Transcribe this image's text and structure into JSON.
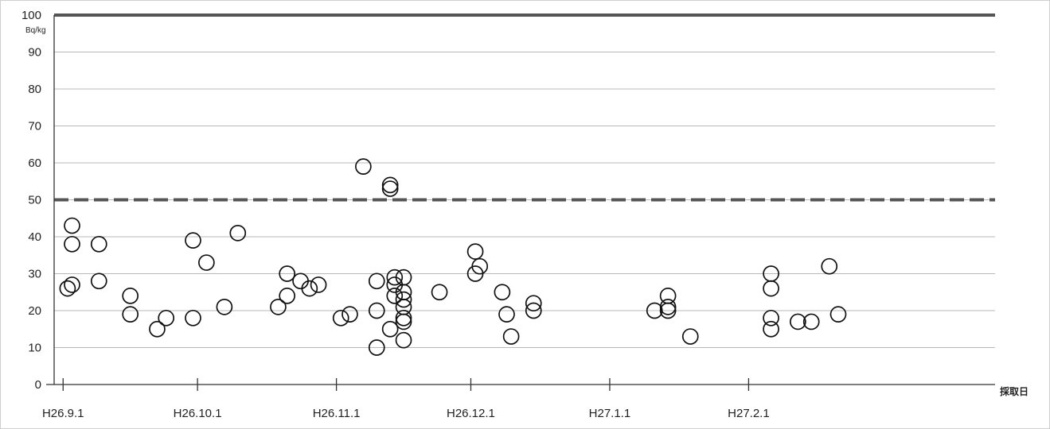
{
  "chart_data": {
    "type": "scatter",
    "title": "",
    "ylabel": "Bq/kg",
    "xlabel": "採取日",
    "ylim": [
      0,
      100
    ],
    "yticks": [
      0,
      10,
      20,
      30,
      40,
      50,
      60,
      70,
      80,
      90,
      100
    ],
    "xlim": [
      "2014-08-30",
      "2015-03-28"
    ],
    "xticks": [
      {
        "date": "2014-09-01",
        "label": "H26.9.1"
      },
      {
        "date": "2014-10-01",
        "label": "H26.10.1"
      },
      {
        "date": "2014-11-01",
        "label": "H26.11.1"
      },
      {
        "date": "2014-12-01",
        "label": "H26.12.1"
      },
      {
        "date": "2015-01-01",
        "label": "H27.1.1"
      },
      {
        "date": "2015-02-01",
        "label": "H27.2.1"
      }
    ],
    "grid": true,
    "legend": "none",
    "reference_lines": [
      {
        "y": 100,
        "style": "solid",
        "color": "#555555"
      },
      {
        "y": 50,
        "style": "dashed",
        "color": "#555555"
      }
    ],
    "series": [
      {
        "marker": "open-circle",
        "color": "#111111",
        "points": [
          {
            "x": "2014-09-02",
            "y": 26
          },
          {
            "x": "2014-09-03",
            "y": 43
          },
          {
            "x": "2014-09-03",
            "y": 38
          },
          {
            "x": "2014-09-03",
            "y": 27
          },
          {
            "x": "2014-09-09",
            "y": 38
          },
          {
            "x": "2014-09-09",
            "y": 28
          },
          {
            "x": "2014-09-16",
            "y": 24
          },
          {
            "x": "2014-09-16",
            "y": 19
          },
          {
            "x": "2014-09-22",
            "y": 15
          },
          {
            "x": "2014-09-24",
            "y": 18
          },
          {
            "x": "2014-09-30",
            "y": 39
          },
          {
            "x": "2014-09-30",
            "y": 18
          },
          {
            "x": "2014-10-03",
            "y": 33
          },
          {
            "x": "2014-10-07",
            "y": 21
          },
          {
            "x": "2014-10-10",
            "y": 41
          },
          {
            "x": "2014-10-19",
            "y": 21
          },
          {
            "x": "2014-10-21",
            "y": 30
          },
          {
            "x": "2014-10-21",
            "y": 24
          },
          {
            "x": "2014-10-24",
            "y": 28
          },
          {
            "x": "2014-10-26",
            "y": 26
          },
          {
            "x": "2014-10-28",
            "y": 27
          },
          {
            "x": "2014-11-02",
            "y": 18
          },
          {
            "x": "2014-11-04",
            "y": 19
          },
          {
            "x": "2014-11-07",
            "y": 59
          },
          {
            "x": "2014-11-10",
            "y": 28
          },
          {
            "x": "2014-11-10",
            "y": 20
          },
          {
            "x": "2014-11-10",
            "y": 10
          },
          {
            "x": "2014-11-13",
            "y": 54
          },
          {
            "x": "2014-11-13",
            "y": 53
          },
          {
            "x": "2014-11-13",
            "y": 15
          },
          {
            "x": "2014-11-14",
            "y": 29
          },
          {
            "x": "2014-11-14",
            "y": 27
          },
          {
            "x": "2014-11-14",
            "y": 24
          },
          {
            "x": "2014-11-16",
            "y": 29
          },
          {
            "x": "2014-11-16",
            "y": 25
          },
          {
            "x": "2014-11-16",
            "y": 23
          },
          {
            "x": "2014-11-16",
            "y": 21
          },
          {
            "x": "2014-11-16",
            "y": 18
          },
          {
            "x": "2014-11-16",
            "y": 17
          },
          {
            "x": "2014-11-16",
            "y": 12
          },
          {
            "x": "2014-11-24",
            "y": 25
          },
          {
            "x": "2014-12-02",
            "y": 36
          },
          {
            "x": "2014-12-02",
            "y": 30
          },
          {
            "x": "2014-12-03",
            "y": 32
          },
          {
            "x": "2014-12-08",
            "y": 25
          },
          {
            "x": "2014-12-09",
            "y": 19
          },
          {
            "x": "2014-12-10",
            "y": 13
          },
          {
            "x": "2014-12-15",
            "y": 22
          },
          {
            "x": "2014-12-15",
            "y": 20
          },
          {
            "x": "2015-01-11",
            "y": 20
          },
          {
            "x": "2015-01-14",
            "y": 24
          },
          {
            "x": "2015-01-14",
            "y": 21
          },
          {
            "x": "2015-01-14",
            "y": 20
          },
          {
            "x": "2015-01-19",
            "y": 13
          },
          {
            "x": "2015-02-06",
            "y": 30
          },
          {
            "x": "2015-02-06",
            "y": 26
          },
          {
            "x": "2015-02-06",
            "y": 18
          },
          {
            "x": "2015-02-06",
            "y": 15
          },
          {
            "x": "2015-02-12",
            "y": 17
          },
          {
            "x": "2015-02-15",
            "y": 17
          },
          {
            "x": "2015-02-19",
            "y": 32
          },
          {
            "x": "2015-02-21",
            "y": 19
          }
        ]
      }
    ]
  }
}
